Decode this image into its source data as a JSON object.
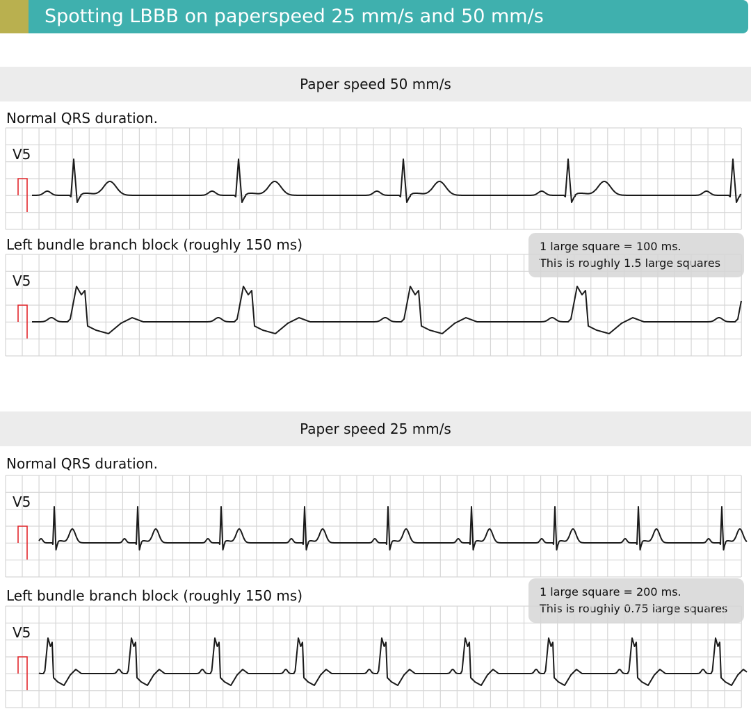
{
  "header": {
    "title": "Spotting LBBB on paperspeed 25 mm/s and 50 mm/s",
    "colors": {
      "bar": "#3fb0ae",
      "tag": "#b9b04f"
    }
  },
  "sections": [
    {
      "title": "Paper speed 50 mm/s",
      "strips": [
        {
          "label": "Normal QRS duration.",
          "lead": "V5",
          "type": "normal",
          "beats": 5
        },
        {
          "label": "Left bundle branch block (roughly 150 ms)",
          "lead": "V5",
          "type": "lbbb",
          "beats": 5
        }
      ],
      "callout": [
        "1 large square = 100 ms.",
        "This is roughly 1.5 large squares"
      ]
    },
    {
      "title": "Paper speed 25 mm/s",
      "strips": [
        {
          "label": "Normal QRS duration.",
          "lead": "V5",
          "type": "normal",
          "beats": 9
        },
        {
          "label": "Left bundle branch block (roughly 150 ms)",
          "lead": "V5",
          "type": "lbbb",
          "beats": 9
        }
      ],
      "callout": [
        "1 large square = 200 ms.",
        "This is roughly 0.75 large squares"
      ]
    }
  ],
  "colors": {
    "grid": "#d6d6d6",
    "trace": "#1a1a1a",
    "calibration": "#e2262b"
  }
}
